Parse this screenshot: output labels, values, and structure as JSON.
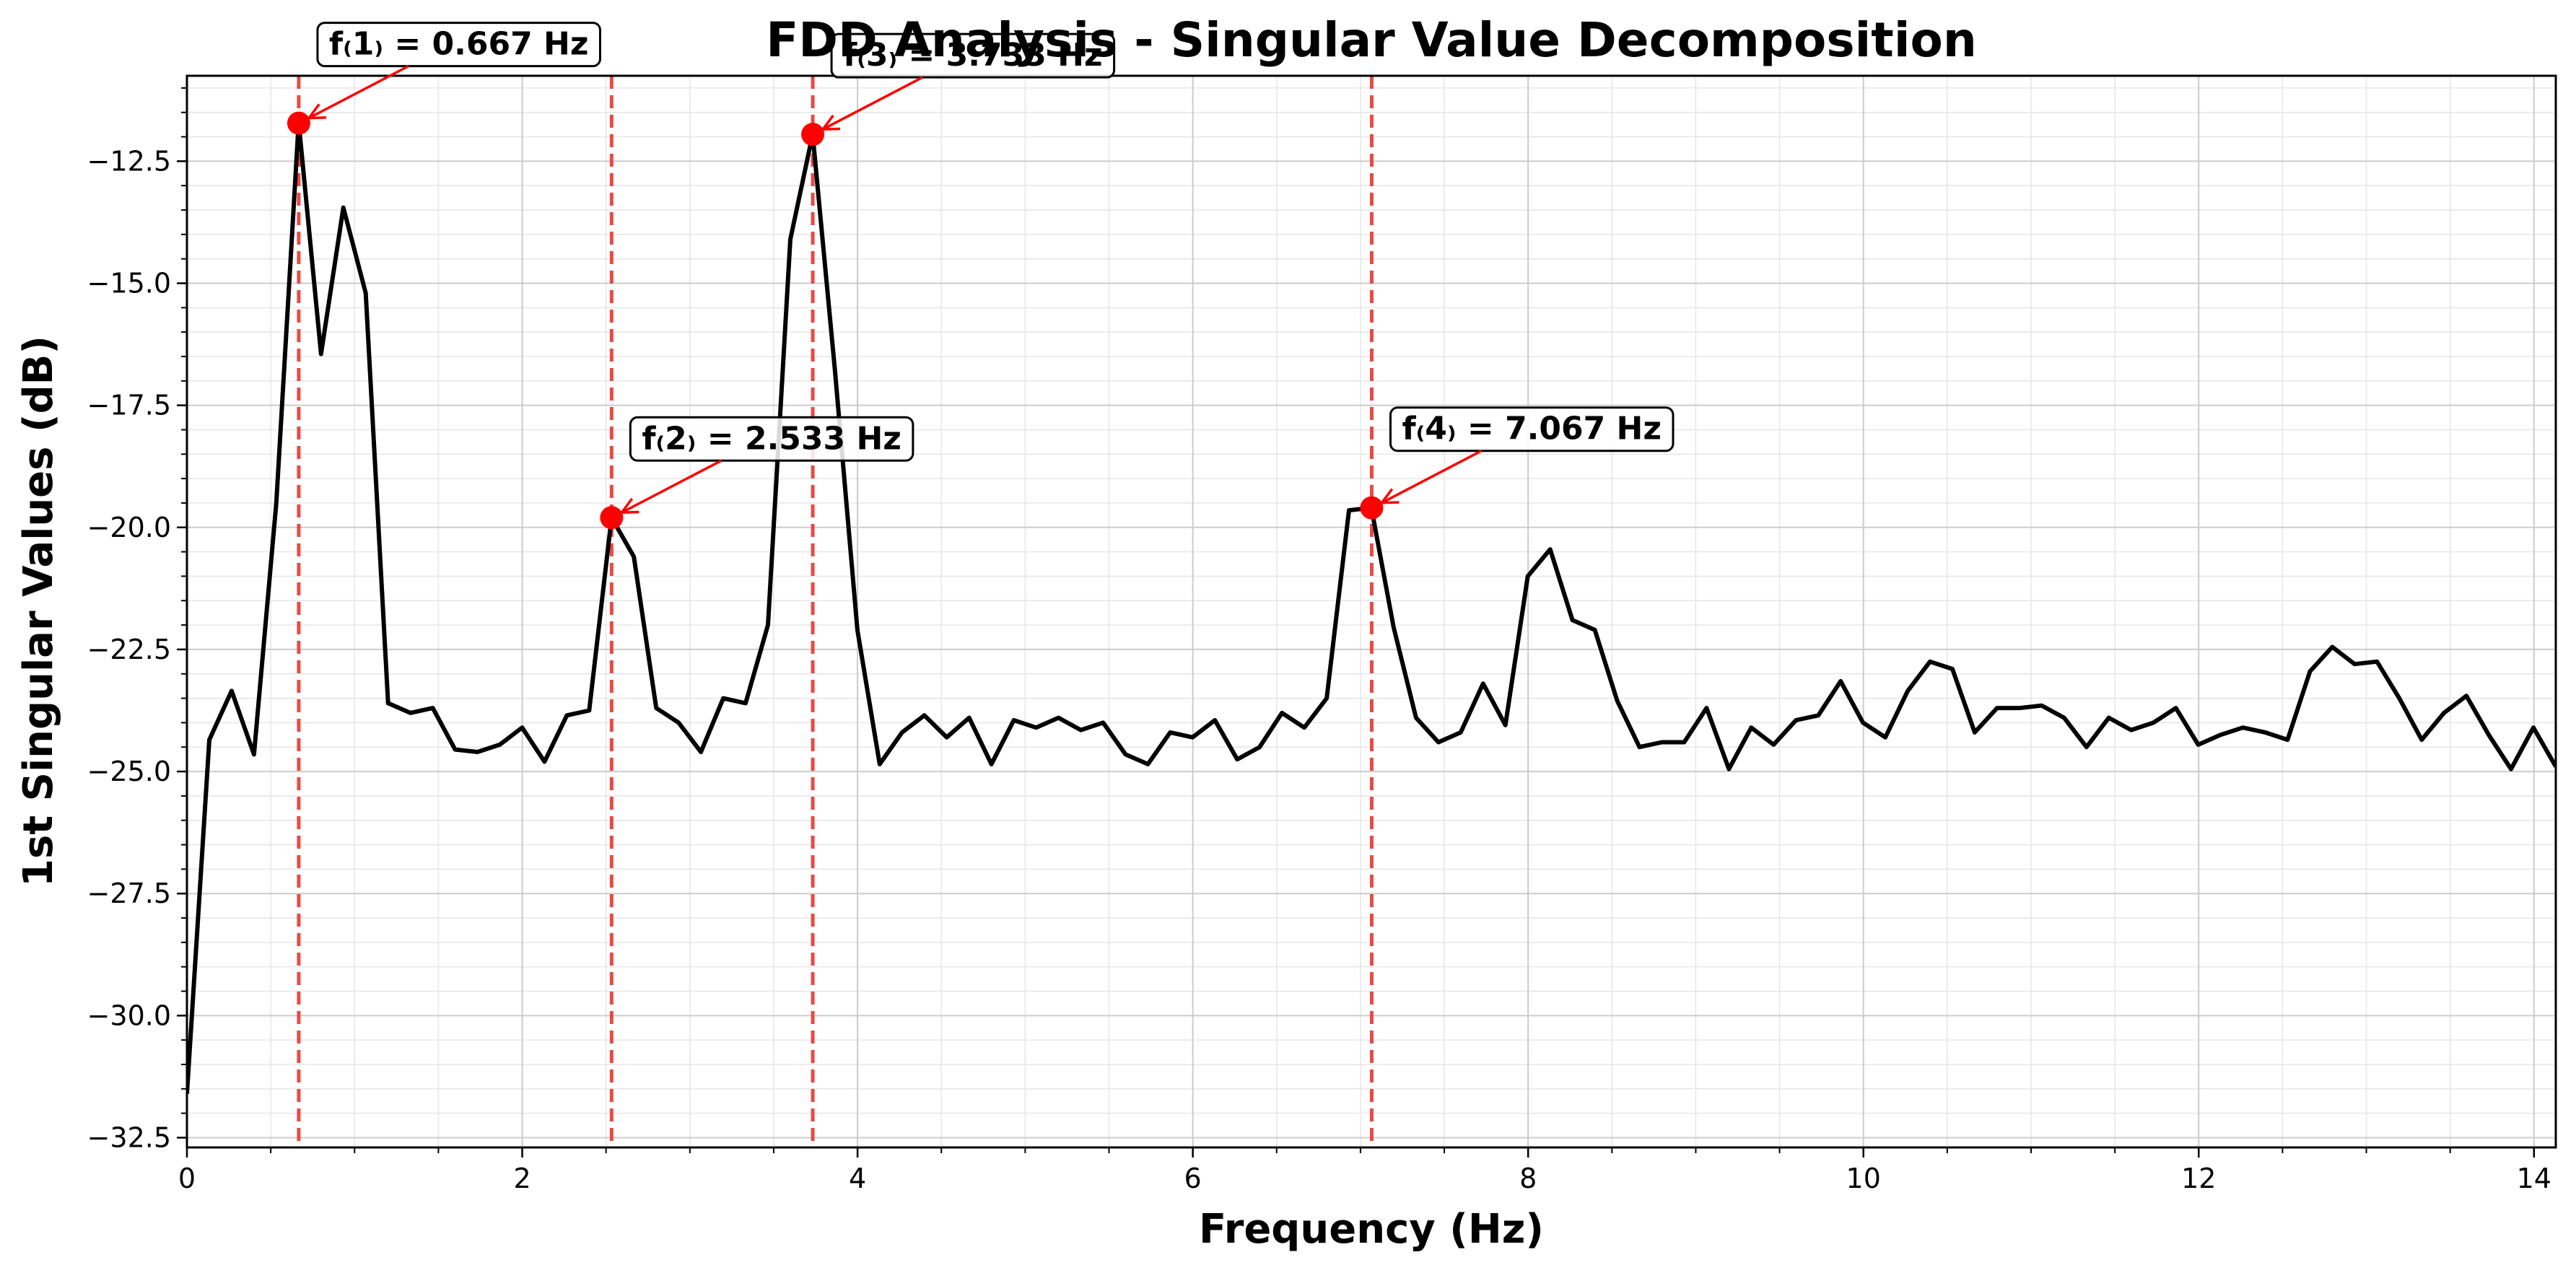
{
  "chart_data": {
    "type": "line",
    "title": "FDD Analysis - Singular Value Decomposition",
    "xlabel": "Frequency (Hz)",
    "ylabel": "1st Singular Values (dB)",
    "xlim": [
      0,
      14.13
    ],
    "ylim": [
      -32.7,
      -10.75
    ],
    "xticks": [
      0,
      2,
      4,
      6,
      8,
      10,
      12,
      14
    ],
    "yticks": [
      -32.5,
      -30.0,
      -27.5,
      -25.0,
      -22.5,
      -20.0,
      -17.5,
      -15.0,
      -12.5
    ],
    "x_minor_step": 0.5,
    "y_minor_step": 0.5,
    "grid": true,
    "line_color": "#000000",
    "peak_color": "#ff0000",
    "vline_color": "#e8413c",
    "series": [
      {
        "x_step": 0.1333,
        "values": [
          -31.6,
          -24.35,
          -23.35,
          -24.65,
          -19.5,
          -11.7,
          -16.45,
          -13.45,
          -15.2,
          -23.6,
          -23.8,
          -23.7,
          -24.55,
          -24.6,
          -24.45,
          -24.1,
          -24.8,
          -23.85,
          -23.75,
          -19.8,
          -20.6,
          -23.7,
          -24.0,
          -24.6,
          -23.5,
          -23.6,
          -22.0,
          -14.1,
          -11.95,
          -16.8,
          -22.1,
          -24.85,
          -24.2,
          -23.85,
          -24.3,
          -23.9,
          -24.85,
          -23.95,
          -24.1,
          -23.9,
          -24.15,
          -24.0,
          -24.65,
          -24.85,
          -24.2,
          -24.3,
          -23.95,
          -24.75,
          -24.5,
          -23.8,
          -24.1,
          -23.5,
          -19.65,
          -19.6,
          -22.05,
          -23.9,
          -24.4,
          -24.2,
          -23.2,
          -24.05,
          -21.0,
          -20.45,
          -21.9,
          -22.1,
          -23.55,
          -24.5,
          -24.4,
          -24.4,
          -23.7,
          -24.95,
          -24.1,
          -24.45,
          -23.95,
          -23.85,
          -23.15,
          -24.0,
          -24.3,
          -23.35,
          -22.75,
          -22.9,
          -24.2,
          -23.7,
          -23.7,
          -23.65,
          -23.9,
          -24.5,
          -23.9,
          -24.15,
          -24.0,
          -23.7,
          -24.45,
          -24.25,
          -24.1,
          -24.2,
          -24.35,
          -22.95,
          -22.45,
          -22.8,
          -22.75,
          -23.5,
          -24.35,
          -23.8,
          -23.45,
          -24.25,
          -24.95,
          -24.1,
          -24.9
        ]
      }
    ],
    "peaks": [
      {
        "label": "f₍1₎ = 0.667 Hz",
        "x": 0.667,
        "y": -11.72
      },
      {
        "label": "f₍2₎ = 2.533 Hz",
        "x": 2.533,
        "y": -19.8
      },
      {
        "label": "f₍3₎ = 3.733 Hz",
        "x": 3.733,
        "y": -11.95
      },
      {
        "label": "f₍4₎ = 7.067 Hz",
        "x": 7.067,
        "y": -19.6
      }
    ]
  }
}
